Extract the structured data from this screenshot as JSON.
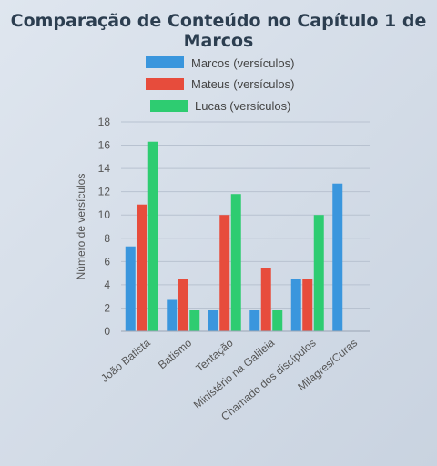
{
  "chart_data": {
    "type": "bar",
    "title": "Comparação de Conteúdo no Capítulo 1 de Marcos",
    "xlabel": "",
    "ylabel": "Número de versículos",
    "ylim": [
      0,
      18
    ],
    "yticks": [
      0,
      2,
      4,
      6,
      8,
      10,
      12,
      14,
      16,
      18
    ],
    "grid": true,
    "legend_position": "top-center",
    "categories": [
      "João Batista",
      "Batismo",
      "Tentação",
      "Ministério na Galileia",
      "Chamado dos discípulos",
      "Milagres/Curas"
    ],
    "series": [
      {
        "name": "Marcos (versículos)",
        "color": "#3a96dd",
        "values": [
          7.3,
          2.7,
          1.8,
          1.8,
          4.5,
          12.7
        ]
      },
      {
        "name": "Mateus (versículos)",
        "color": "#e74c3c",
        "values": [
          10.9,
          4.5,
          10,
          5.4,
          4.5,
          0
        ]
      },
      {
        "name": "Lucas (versículos)",
        "color": "#2ecc71",
        "values": [
          16.3,
          1.8,
          11.8,
          1.8,
          10,
          0
        ]
      }
    ]
  }
}
